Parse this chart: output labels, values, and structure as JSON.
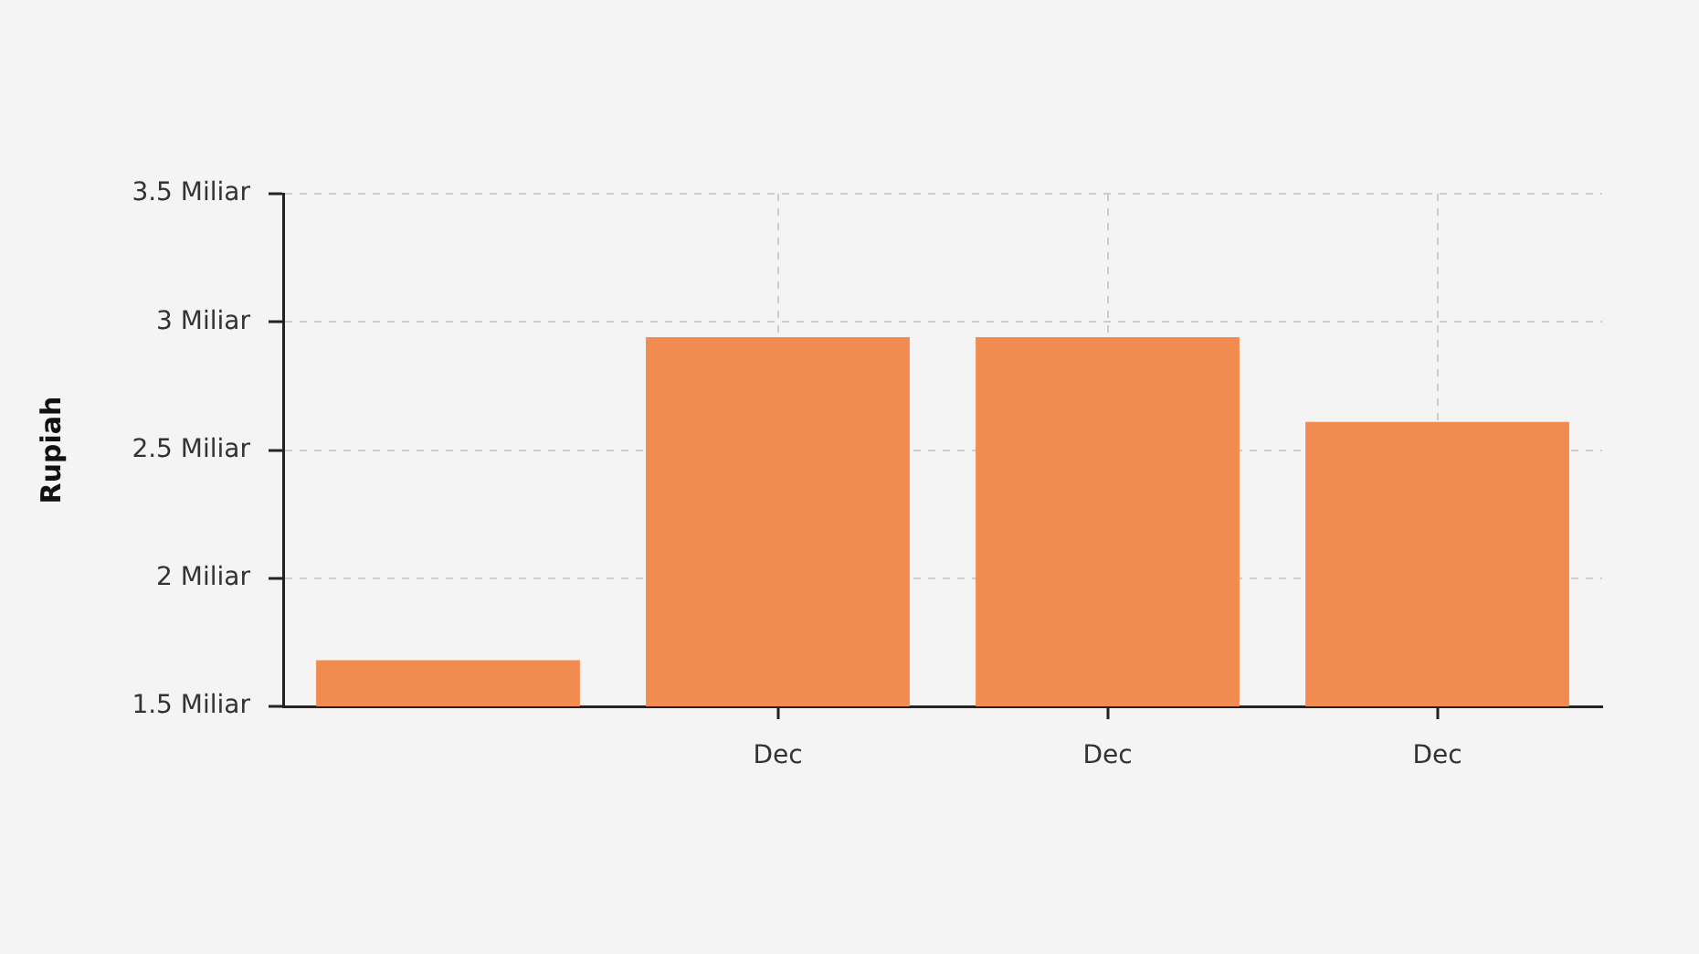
{
  "chart_data": {
    "type": "bar",
    "ylabel": "Rupiah",
    "categories": [
      null,
      "Dec",
      "Dec",
      "Dec"
    ],
    "values": [
      1.68,
      2.94,
      2.94,
      2.61
    ],
    "color": "#f28b4f",
    "ylim": [
      1.5,
      3.5
    ],
    "yticks": [
      {
        "value": 1.5,
        "label": "1.5 Miliar"
      },
      {
        "value": 2,
        "label": "2 Miliar"
      },
      {
        "value": 2.5,
        "label": "2.5 Miliar"
      },
      {
        "value": 3,
        "label": "3 Miliar"
      },
      {
        "value": 3.5,
        "label": "3.5 Miliar"
      }
    ],
    "grid": true
  }
}
